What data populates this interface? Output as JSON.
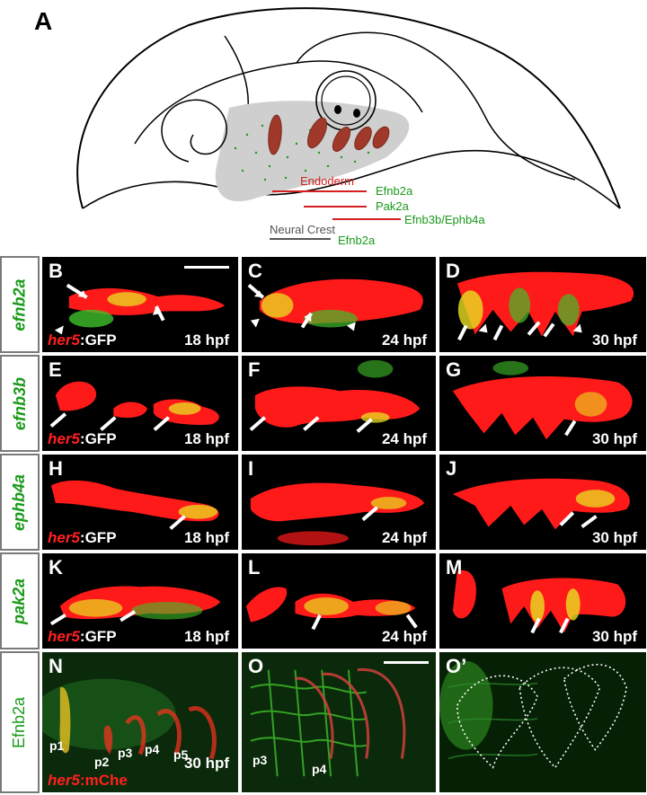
{
  "panelA": {
    "letter": "A",
    "legend": {
      "endoderm": "Endoderm",
      "efnb2a": "Efnb2a",
      "pak2a": "Pak2a",
      "efnb3b_ephb4a": "Efnb3b/Ephb4a",
      "neural_crest": "Neural Crest",
      "nc_efnb2a": "Efnb2a"
    },
    "colors": {
      "endoderm": "#d42020",
      "marker": "#1a9a1a",
      "neural_crest": "#555555",
      "region": "#cfcfcf",
      "pouch": "#a0392a"
    }
  },
  "rows": [
    {
      "label": "efnb2a",
      "italic": true,
      "panels": [
        {
          "letter": "B",
          "gfp_italic": "her5",
          "gfp_rest": ":GFP",
          "time": "18 hpf",
          "scalebar": true
        },
        {
          "letter": "C",
          "time": "24 hpf"
        },
        {
          "letter": "D",
          "time": "30 hpf"
        }
      ]
    },
    {
      "label": "efnb3b",
      "italic": true,
      "panels": [
        {
          "letter": "E",
          "gfp_italic": "her5",
          "gfp_rest": ":GFP",
          "time": "18 hpf"
        },
        {
          "letter": "F",
          "time": "24 hpf"
        },
        {
          "letter": "G",
          "time": "30 hpf"
        }
      ]
    },
    {
      "label": "ephb4a",
      "italic": true,
      "panels": [
        {
          "letter": "H",
          "gfp_italic": "her5",
          "gfp_rest": ":GFP",
          "time": "18 hpf"
        },
        {
          "letter": "I",
          "time": "24 hpf"
        },
        {
          "letter": "J",
          "time": "30 hpf"
        }
      ]
    },
    {
      "label": "pak2a",
      "italic": true,
      "panels": [
        {
          "letter": "K",
          "gfp_italic": "her5",
          "gfp_rest": ":GFP",
          "time": "18 hpf"
        },
        {
          "letter": "L",
          "time": "24 hpf"
        },
        {
          "letter": "M",
          "time": "30 hpf"
        }
      ]
    },
    {
      "label": "Efnb2a",
      "italic": false,
      "panels": [
        {
          "letter": "N",
          "gfp_italic": "her5",
          "gfp_rest": ":mChe",
          "time": "30 hpf",
          "arches": [
            "p1",
            "p2",
            "p3",
            "p4",
            "p5"
          ]
        },
        {
          "letter": "O",
          "arches": [
            "p3",
            "p4"
          ],
          "scalebar": true
        },
        {
          "letter": "O’"
        }
      ]
    }
  ]
}
